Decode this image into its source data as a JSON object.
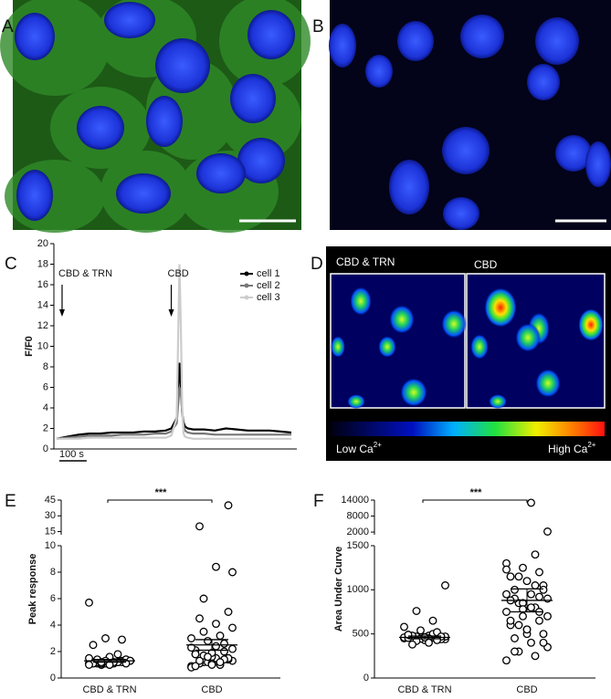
{
  "panel_labels": [
    "A",
    "B",
    "C",
    "D",
    "E",
    "F"
  ],
  "panel_d": {
    "left_title": "CBD & TRN",
    "right_title": "CBD",
    "low": {
      "text": "Low Ca",
      "sup": "2+"
    },
    "high": {
      "text": "High Ca",
      "sup": "2+"
    }
  },
  "chart_data": [
    {
      "type": "line",
      "ylabel": "F/F0",
      "x": [
        0,
        40,
        80,
        120,
        160,
        200,
        240,
        280,
        320,
        360,
        400,
        420,
        440,
        450,
        455,
        460,
        465,
        470,
        480,
        500,
        540,
        580,
        620,
        660,
        700,
        740,
        780,
        820,
        860
      ],
      "xlim": [
        0,
        880
      ],
      "ylim": [
        0,
        20
      ],
      "yticks": [
        0,
        2,
        4,
        6,
        8,
        10,
        12,
        14,
        16,
        18,
        20
      ],
      "scalebar": {
        "value": 100,
        "label": "100 s"
      },
      "annotations": [
        {
          "text": "CBD & TRN",
          "x": 20
        },
        {
          "text": "CBD",
          "x": 420
        }
      ],
      "legend": "upper right",
      "series": [
        {
          "name": "cell 1",
          "color": "#000000",
          "values": [
            1.0,
            1.2,
            1.4,
            1.5,
            1.5,
            1.6,
            1.6,
            1.6,
            1.7,
            1.7,
            1.8,
            2.0,
            3.0,
            8.4,
            6.0,
            3.5,
            2.6,
            2.2,
            2.0,
            1.9,
            1.9,
            1.8,
            2.0,
            1.9,
            1.8,
            1.8,
            1.8,
            1.7,
            1.6
          ]
        },
        {
          "name": "cell 2",
          "color": "#777777",
          "values": [
            1.0,
            1.1,
            1.2,
            1.3,
            1.3,
            1.3,
            1.4,
            1.4,
            1.4,
            1.5,
            1.5,
            1.7,
            2.5,
            6.0,
            5.5,
            3.5,
            2.2,
            1.8,
            1.6,
            1.5,
            1.5,
            1.4,
            1.4,
            1.4,
            1.4,
            1.4,
            1.4,
            1.4,
            1.4
          ]
        },
        {
          "name": "cell 3",
          "color": "#cccccc",
          "values": [
            1.0,
            1.0,
            1.0,
            1.1,
            1.1,
            1.1,
            1.1,
            1.1,
            1.1,
            1.1,
            1.1,
            1.3,
            3.0,
            18,
            12,
            4.0,
            1.5,
            1.2,
            1.1,
            1.0,
            1.0,
            1.0,
            1.0,
            1.0,
            1.0,
            1.0,
            1.0,
            1.0,
            1.0
          ]
        }
      ]
    },
    {
      "type": "strip",
      "ylabel": "Peak response",
      "categories": [
        "CBD & TRN",
        "CBD"
      ],
      "y_segments": [
        {
          "ylim": [
            0,
            10
          ],
          "yticks": [
            0,
            2,
            4,
            6,
            8,
            10
          ]
        },
        {
          "ylim": [
            12,
            45
          ],
          "yticks": [
            15,
            30,
            45
          ]
        }
      ],
      "significance": "***",
      "color": "#000000",
      "groups": [
        {
          "values": [
            1.1,
            1.2,
            1.0,
            1.3,
            1.2,
            1.1,
            1.4,
            1.0,
            1.2,
            1.3,
            1.1,
            1.5,
            1.2,
            1.0,
            1.3,
            1.1,
            1.2,
            1.4,
            1.6,
            1.1,
            1.2,
            1.3,
            1.0,
            1.2,
            1.1,
            1.3,
            1.2,
            1.4,
            1.1,
            1.0,
            2.5,
            2.9,
            3.0,
            5.7,
            1.8,
            1.2
          ],
          "mean": 1.3,
          "error": 0.1
        },
        {
          "values": [
            0.9,
            1.0,
            1.2,
            1.3,
            1.5,
            1.1,
            1.4,
            1.6,
            1.8,
            2.0,
            1.2,
            0.8,
            1.0,
            1.7,
            2.2,
            2.4,
            1.3,
            1.5,
            1.9,
            2.1,
            2.6,
            2.8,
            3.0,
            3.2,
            3.5,
            3.8,
            4.1,
            4.5,
            5.0,
            1.1,
            0.9,
            1.4,
            1.6,
            2.3,
            1.2,
            6.0,
            8.0,
            8.4,
            20,
            40,
            1.0,
            1.8
          ],
          "mean": 2.5,
          "error": 0.4
        }
      ]
    },
    {
      "type": "strip",
      "ylabel": "Area Under Curve",
      "categories": [
        "CBD & TRN",
        "CBD"
      ],
      "y_segments": [
        {
          "ylim": [
            0,
            1500
          ],
          "yticks": [
            0,
            500,
            1000,
            1500
          ]
        },
        {
          "ylim": [
            1000,
            14000
          ],
          "yticks": [
            2000,
            8000,
            14000
          ]
        }
      ],
      "significance": "***",
      "color": "#000000",
      "groups": [
        {
          "values": [
            450,
            460,
            470,
            440,
            480,
            455,
            465,
            430,
            490,
            475,
            445,
            460,
            500,
            420,
            470,
            450,
            480,
            440,
            465,
            455,
            520,
            540,
            580,
            650,
            760,
            1050,
            400,
            380,
            470,
            460,
            490,
            430
          ],
          "mean": 460,
          "error": 15
        },
        {
          "values": [
            200,
            250,
            300,
            350,
            400,
            450,
            500,
            550,
            600,
            650,
            700,
            750,
            800,
            850,
            900,
            950,
            1000,
            1050,
            1100,
            1150,
            1200,
            1250,
            1300,
            1400,
            600,
            700,
            800,
            900,
            1000,
            500,
            650,
            750,
            850,
            950,
            1050,
            1150,
            2200,
            13000,
            300,
            400,
            550,
            880,
            920,
            780,
            1230
          ],
          "mean": 880,
          "error": 130
        }
      ]
    }
  ]
}
